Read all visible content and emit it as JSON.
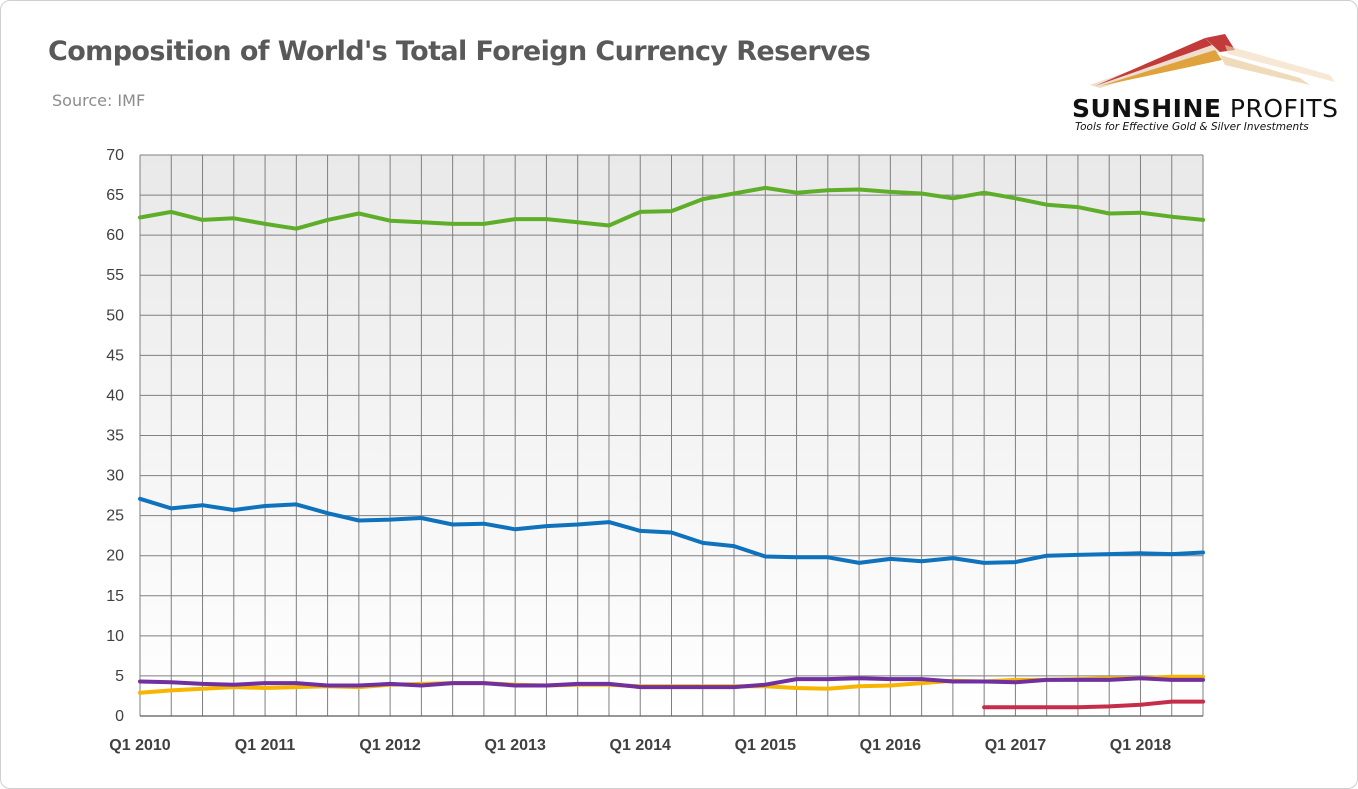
{
  "header": {
    "title": "Composition of World's Total Foreign Currency Reserves",
    "source": "Source: IMF"
  },
  "logo": {
    "name_bold": "SUNSHINE",
    "name_rest": " PROFITS",
    "tagline": "Tools for Effective Gold & Silver Investments"
  },
  "chart_data": {
    "type": "line",
    "title": "Composition of World's Total Foreign Currency Reserves",
    "xlabel": "",
    "ylabel": "",
    "ylim": [
      0,
      70
    ],
    "yticks": [
      0,
      5,
      10,
      15,
      20,
      25,
      30,
      35,
      40,
      45,
      50,
      55,
      60,
      65,
      70
    ],
    "grid": true,
    "legend": "none",
    "x": [
      "Q1 2010",
      "Q2 2010",
      "Q3 2010",
      "Q4 2010",
      "Q1 2011",
      "Q2 2011",
      "Q3 2011",
      "Q4 2011",
      "Q1 2012",
      "Q2 2012",
      "Q3 2012",
      "Q4 2012",
      "Q1 2013",
      "Q2 2013",
      "Q3 2013",
      "Q4 2013",
      "Q1 2014",
      "Q2 2014",
      "Q3 2014",
      "Q4 2014",
      "Q1 2015",
      "Q2 2015",
      "Q3 2015",
      "Q4 2015",
      "Q1 2016",
      "Q2 2016",
      "Q3 2016",
      "Q4 2016",
      "Q1 2017",
      "Q2 2017",
      "Q3 2017",
      "Q4 2017",
      "Q1 2018",
      "Q2 2018",
      "Q3 2018"
    ],
    "xtick_labels": [
      "Q1 2010",
      "Q1 2011",
      "Q1 2012",
      "Q1 2013",
      "Q1 2014",
      "Q1 2015",
      "Q1 2016",
      "Q1 2017",
      "Q1 2018"
    ],
    "series": [
      {
        "color": "#5fae2a",
        "values": [
          62.2,
          62.9,
          61.9,
          62.1,
          61.4,
          60.8,
          61.9,
          62.7,
          61.8,
          61.6,
          61.4,
          61.4,
          62.0,
          62.0,
          61.6,
          61.2,
          62.9,
          63.0,
          64.5,
          65.2,
          65.9,
          65.3,
          65.6,
          65.7,
          65.4,
          65.2,
          64.6,
          65.3,
          64.6,
          63.8,
          63.5,
          62.7,
          62.8,
          62.3,
          61.9
        ]
      },
      {
        "color": "#0f72bd",
        "values": [
          27.1,
          25.9,
          26.3,
          25.7,
          26.2,
          26.4,
          25.3,
          24.4,
          24.5,
          24.7,
          23.9,
          24.0,
          23.3,
          23.7,
          23.9,
          24.2,
          23.1,
          22.9,
          21.6,
          21.2,
          19.9,
          19.8,
          19.8,
          19.1,
          19.6,
          19.3,
          19.7,
          19.1,
          19.2,
          20.0,
          20.1,
          20.2,
          20.3,
          20.2,
          20.4
        ]
      },
      {
        "color": "#f7b500",
        "values": [
          2.9,
          3.2,
          3.4,
          3.6,
          3.5,
          3.6,
          3.7,
          3.6,
          3.9,
          4.0,
          4.1,
          4.1,
          3.9,
          3.8,
          3.9,
          3.9,
          3.7,
          3.7,
          3.7,
          3.7,
          3.7,
          3.5,
          3.4,
          3.7,
          3.8,
          4.1,
          4.4,
          4.3,
          4.5,
          4.5,
          4.6,
          4.7,
          4.7,
          4.9,
          4.9
        ]
      },
      {
        "color": "#7030a0",
        "values": [
          4.3,
          4.2,
          4.0,
          3.9,
          4.1,
          4.1,
          3.8,
          3.8,
          4.0,
          3.8,
          4.1,
          4.1,
          3.8,
          3.8,
          4.0,
          4.0,
          3.6,
          3.6,
          3.6,
          3.6,
          3.9,
          4.6,
          4.6,
          4.7,
          4.6,
          4.6,
          4.3,
          4.3,
          4.2,
          4.5,
          4.5,
          4.5,
          4.7,
          4.5,
          4.5
        ]
      },
      {
        "color": "#c52d4a",
        "values": [
          null,
          null,
          null,
          null,
          null,
          null,
          null,
          null,
          null,
          null,
          null,
          null,
          null,
          null,
          null,
          null,
          null,
          null,
          null,
          null,
          null,
          null,
          null,
          null,
          null,
          null,
          null,
          1.1,
          1.1,
          1.1,
          1.1,
          1.2,
          1.4,
          1.8,
          1.8
        ]
      }
    ]
  }
}
